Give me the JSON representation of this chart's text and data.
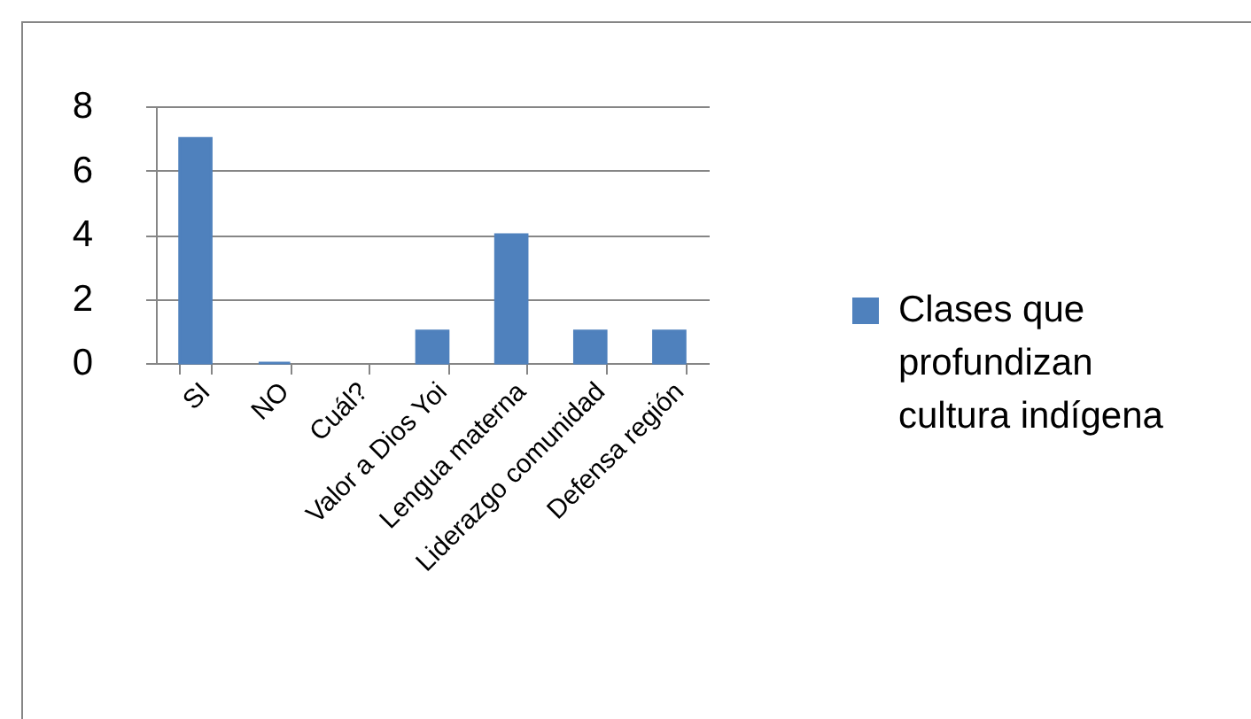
{
  "chart_data": {
    "type": "bar",
    "categories": [
      "SI",
      "NO",
      "Cuál?",
      "Valor a Dios Yoi",
      "Lengua materna",
      "Liderazgo comunidad",
      "Defensa región"
    ],
    "series": [
      {
        "name": "Clases que profundizan cultura indígena",
        "color": "#4f81bd",
        "values": [
          7,
          0,
          null,
          1,
          4,
          1,
          1
        ]
      }
    ],
    "ylim": [
      0,
      8
    ],
    "yticks": [
      0,
      2,
      4,
      6,
      8
    ],
    "grid": "y",
    "legend": "right"
  }
}
